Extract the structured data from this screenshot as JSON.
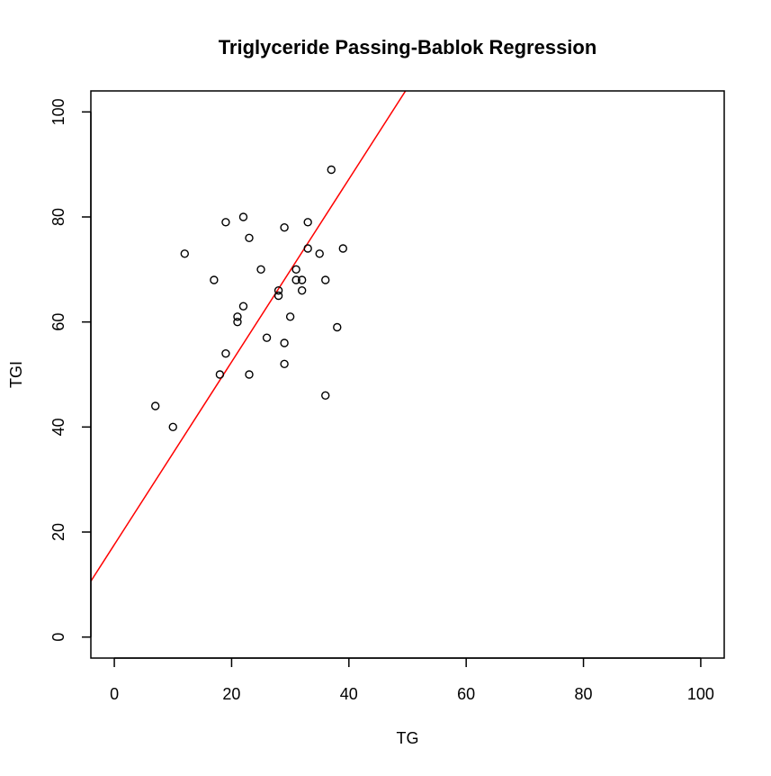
{
  "chart_data": {
    "type": "scatter",
    "title": "Triglyceride Passing-Bablok Regression",
    "xlabel": "TG",
    "ylabel": "TGI",
    "xlim": [
      -4,
      104
    ],
    "ylim": [
      -4,
      104
    ],
    "x_ticks": [
      "0",
      "20",
      "40",
      "60",
      "80",
      "100"
    ],
    "y_ticks": [
      "0",
      "20",
      "40",
      "60",
      "80",
      "100"
    ],
    "x_tick_values": [
      0,
      20,
      40,
      60,
      80,
      100
    ],
    "y_tick_values": [
      0,
      20,
      40,
      60,
      80,
      100
    ],
    "grid": false,
    "legend": "none",
    "points": [
      {
        "x": 7,
        "y": 44
      },
      {
        "x": 10,
        "y": 40
      },
      {
        "x": 12,
        "y": 73
      },
      {
        "x": 17,
        "y": 68
      },
      {
        "x": 18,
        "y": 50
      },
      {
        "x": 19,
        "y": 54
      },
      {
        "x": 19,
        "y": 79
      },
      {
        "x": 21,
        "y": 60
      },
      {
        "x": 21,
        "y": 61
      },
      {
        "x": 22,
        "y": 63
      },
      {
        "x": 22,
        "y": 80
      },
      {
        "x": 23,
        "y": 50
      },
      {
        "x": 23,
        "y": 76
      },
      {
        "x": 25,
        "y": 70
      },
      {
        "x": 26,
        "y": 57
      },
      {
        "x": 28,
        "y": 65
      },
      {
        "x": 28,
        "y": 66
      },
      {
        "x": 29,
        "y": 52
      },
      {
        "x": 29,
        "y": 56
      },
      {
        "x": 29,
        "y": 78
      },
      {
        "x": 30,
        "y": 61
      },
      {
        "x": 31,
        "y": 68
      },
      {
        "x": 31,
        "y": 70
      },
      {
        "x": 32,
        "y": 66
      },
      {
        "x": 32,
        "y": 68
      },
      {
        "x": 33,
        "y": 74
      },
      {
        "x": 33,
        "y": 79
      },
      {
        "x": 35,
        "y": 73
      },
      {
        "x": 36,
        "y": 46
      },
      {
        "x": 36,
        "y": 68
      },
      {
        "x": 37,
        "y": 89
      },
      {
        "x": 38,
        "y": 59
      },
      {
        "x": 39,
        "y": 74
      }
    ],
    "regression_line": {
      "intercept": 17.6,
      "slope": 1.74,
      "color": "#ff0000"
    },
    "point_color": "#000000"
  }
}
